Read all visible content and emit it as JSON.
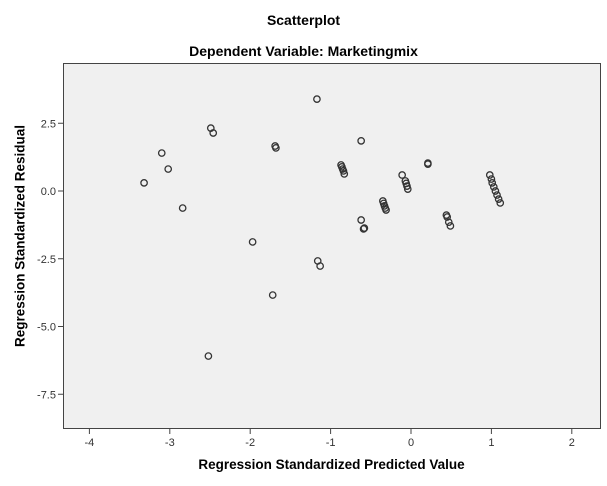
{
  "chart_data": {
    "type": "scatter",
    "title": "Scatterplot",
    "subtitle": "Dependent Variable: Marketingmix",
    "xlabel": "Regression Standardized Predicted Value",
    "ylabel": "Regression Standardized Residual",
    "xlim": [
      -4.35,
      2.35
    ],
    "ylim": [
      -8.7,
      4.7
    ],
    "xticks": [
      -4,
      -3,
      -2,
      -1,
      0,
      1,
      2
    ],
    "yticks": [
      2.5,
      0.0,
      -2.5,
      -5.0,
      -7.5
    ],
    "ytick_labels": [
      "2.5",
      "0.0",
      "-2.5",
      "-5.0",
      "-7.5"
    ],
    "xtick_labels": [
      "-4",
      "-3",
      "-2",
      "-1",
      "0",
      "1",
      "2"
    ],
    "grid": false,
    "marker": "open-circle",
    "plot_background": "#f0f0f0",
    "points": [
      [
        -3.32,
        0.3
      ],
      [
        -3.1,
        1.4
      ],
      [
        -3.02,
        0.81
      ],
      [
        -2.84,
        -0.63
      ],
      [
        -2.49,
        2.32
      ],
      [
        -2.46,
        2.14
      ],
      [
        -1.69,
        1.66
      ],
      [
        -1.68,
        1.59
      ],
      [
        -1.17,
        3.39
      ],
      [
        -0.62,
        1.85
      ],
      [
        -0.87,
        0.96
      ],
      [
        -0.86,
        0.89
      ],
      [
        -0.85,
        0.81
      ],
      [
        -0.84,
        0.74
      ],
      [
        -0.83,
        0.63
      ],
      [
        -0.11,
        0.59
      ],
      [
        -0.07,
        0.37
      ],
      [
        -0.06,
        0.28
      ],
      [
        -0.05,
        0.18
      ],
      [
        -0.04,
        0.07
      ],
      [
        0.21,
        1.03
      ],
      [
        0.21,
        0.99
      ],
      [
        -0.35,
        -0.37
      ],
      [
        -0.34,
        -0.46
      ],
      [
        -0.33,
        -0.55
      ],
      [
        -0.32,
        -0.63
      ],
      [
        -0.31,
        -0.7
      ],
      [
        -0.62,
        -1.07
      ],
      [
        -0.58,
        -1.37
      ],
      [
        -0.59,
        -1.4
      ],
      [
        0.44,
        -0.89
      ],
      [
        0.45,
        -0.96
      ],
      [
        0.47,
        -1.15
      ],
      [
        0.49,
        -1.29
      ],
      [
        0.98,
        0.59
      ],
      [
        1.0,
        0.44
      ],
      [
        1.01,
        0.3
      ],
      [
        1.03,
        0.15
      ],
      [
        1.05,
        0.0
      ],
      [
        1.07,
        -0.15
      ],
      [
        1.09,
        -0.3
      ],
      [
        1.11,
        -0.44
      ],
      [
        -1.97,
        -1.88
      ],
      [
        -1.16,
        -2.58
      ],
      [
        -1.13,
        -2.77
      ],
      [
        -1.72,
        -3.84
      ],
      [
        -2.52,
        -6.09
      ]
    ]
  }
}
